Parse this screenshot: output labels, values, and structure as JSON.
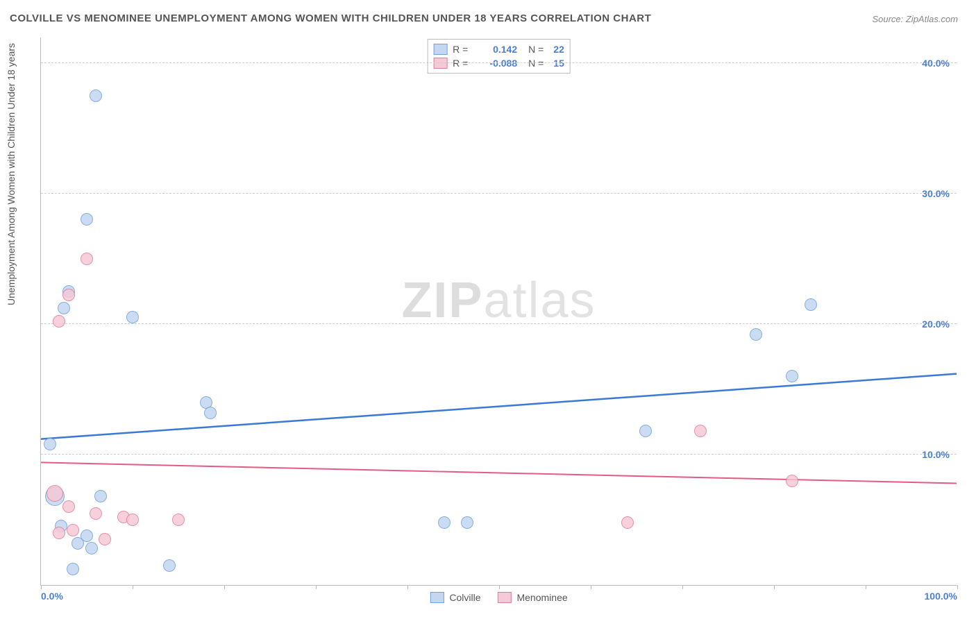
{
  "title": "COLVILLE VS MENOMINEE UNEMPLOYMENT AMONG WOMEN WITH CHILDREN UNDER 18 YEARS CORRELATION CHART",
  "source": "Source: ZipAtlas.com",
  "y_axis_label": "Unemployment Among Women with Children Under 18 years",
  "watermark_a": "ZIP",
  "watermark_b": "atlas",
  "chart": {
    "type": "scatter",
    "background_color": "#ffffff",
    "grid_color": "#cccccc",
    "axis_color": "#bbbbbb",
    "xlim": [
      0,
      100
    ],
    "ylim": [
      0,
      42
    ],
    "x_ticks": [
      0,
      10,
      20,
      30,
      40,
      50,
      60,
      70,
      80,
      90,
      100
    ],
    "x_tick_labels": {
      "0": "0.0%",
      "100": "100.0%"
    },
    "y_ticks": [
      10,
      20,
      30,
      40
    ],
    "y_tick_labels": {
      "10": "10.0%",
      "20": "20.0%",
      "30": "30.0%",
      "40": "40.0%"
    },
    "tick_label_color": "#4a7fd6",
    "tick_label_fontsize": 14,
    "point_radius": 9,
    "point_stroke_width": 1.5,
    "series": [
      {
        "name": "Colville",
        "fill_color": "#c3d7f0",
        "stroke_color": "#6f9fdc",
        "trend_color": "#3b78d8",
        "trend_width": 2.5,
        "r_value": "0.142",
        "n_value": "22",
        "points": [
          {
            "x": 1,
            "y": 10.8
          },
          {
            "x": 6,
            "y": 37.5
          },
          {
            "x": 2.5,
            "y": 21.2
          },
          {
            "x": 3,
            "y": 22.5
          },
          {
            "x": 2.2,
            "y": 4.5
          },
          {
            "x": 5,
            "y": 3.8
          },
          {
            "x": 4,
            "y": 3.2
          },
          {
            "x": 5.5,
            "y": 2.8
          },
          {
            "x": 3.5,
            "y": 1.2
          },
          {
            "x": 6.5,
            "y": 6.8
          },
          {
            "x": 5,
            "y": 28.0
          },
          {
            "x": 10,
            "y": 20.5
          },
          {
            "x": 14,
            "y": 1.5
          },
          {
            "x": 18,
            "y": 14.0
          },
          {
            "x": 18.5,
            "y": 13.2
          },
          {
            "x": 44,
            "y": 4.8
          },
          {
            "x": 46.5,
            "y": 4.8
          },
          {
            "x": 66,
            "y": 11.8
          },
          {
            "x": 78,
            "y": 19.2
          },
          {
            "x": 82,
            "y": 16.0
          },
          {
            "x": 84,
            "y": 21.5
          },
          {
            "x": 1.5,
            "y": 6.8,
            "r": 14
          }
        ],
        "trend": {
          "y_at_x0": 11.2,
          "y_at_x100": 16.2
        }
      },
      {
        "name": "Menominee",
        "fill_color": "#f5c9d6",
        "stroke_color": "#e07d9c",
        "trend_color": "#e35a84",
        "trend_width": 2,
        "r_value": "-0.088",
        "n_value": "15",
        "points": [
          {
            "x": 2,
            "y": 20.2
          },
          {
            "x": 2,
            "y": 4.0
          },
          {
            "x": 3,
            "y": 22.2
          },
          {
            "x": 3,
            "y": 6.0
          },
          {
            "x": 3.5,
            "y": 4.2
          },
          {
            "x": 5,
            "y": 25.0
          },
          {
            "x": 6,
            "y": 5.5
          },
          {
            "x": 7,
            "y": 3.5
          },
          {
            "x": 9,
            "y": 5.2
          },
          {
            "x": 10,
            "y": 5.0
          },
          {
            "x": 15,
            "y": 5.0
          },
          {
            "x": 64,
            "y": 4.8
          },
          {
            "x": 72,
            "y": 11.8
          },
          {
            "x": 82,
            "y": 8.0
          },
          {
            "x": 1.5,
            "y": 7.0,
            "r": 12
          }
        ],
        "trend": {
          "y_at_x0": 9.4,
          "y_at_x100": 7.8
        }
      }
    ]
  },
  "legend_top": {
    "r_label": "R =",
    "n_label": "N ="
  },
  "legend_bottom": {
    "items": [
      "Colville",
      "Menominee"
    ]
  }
}
